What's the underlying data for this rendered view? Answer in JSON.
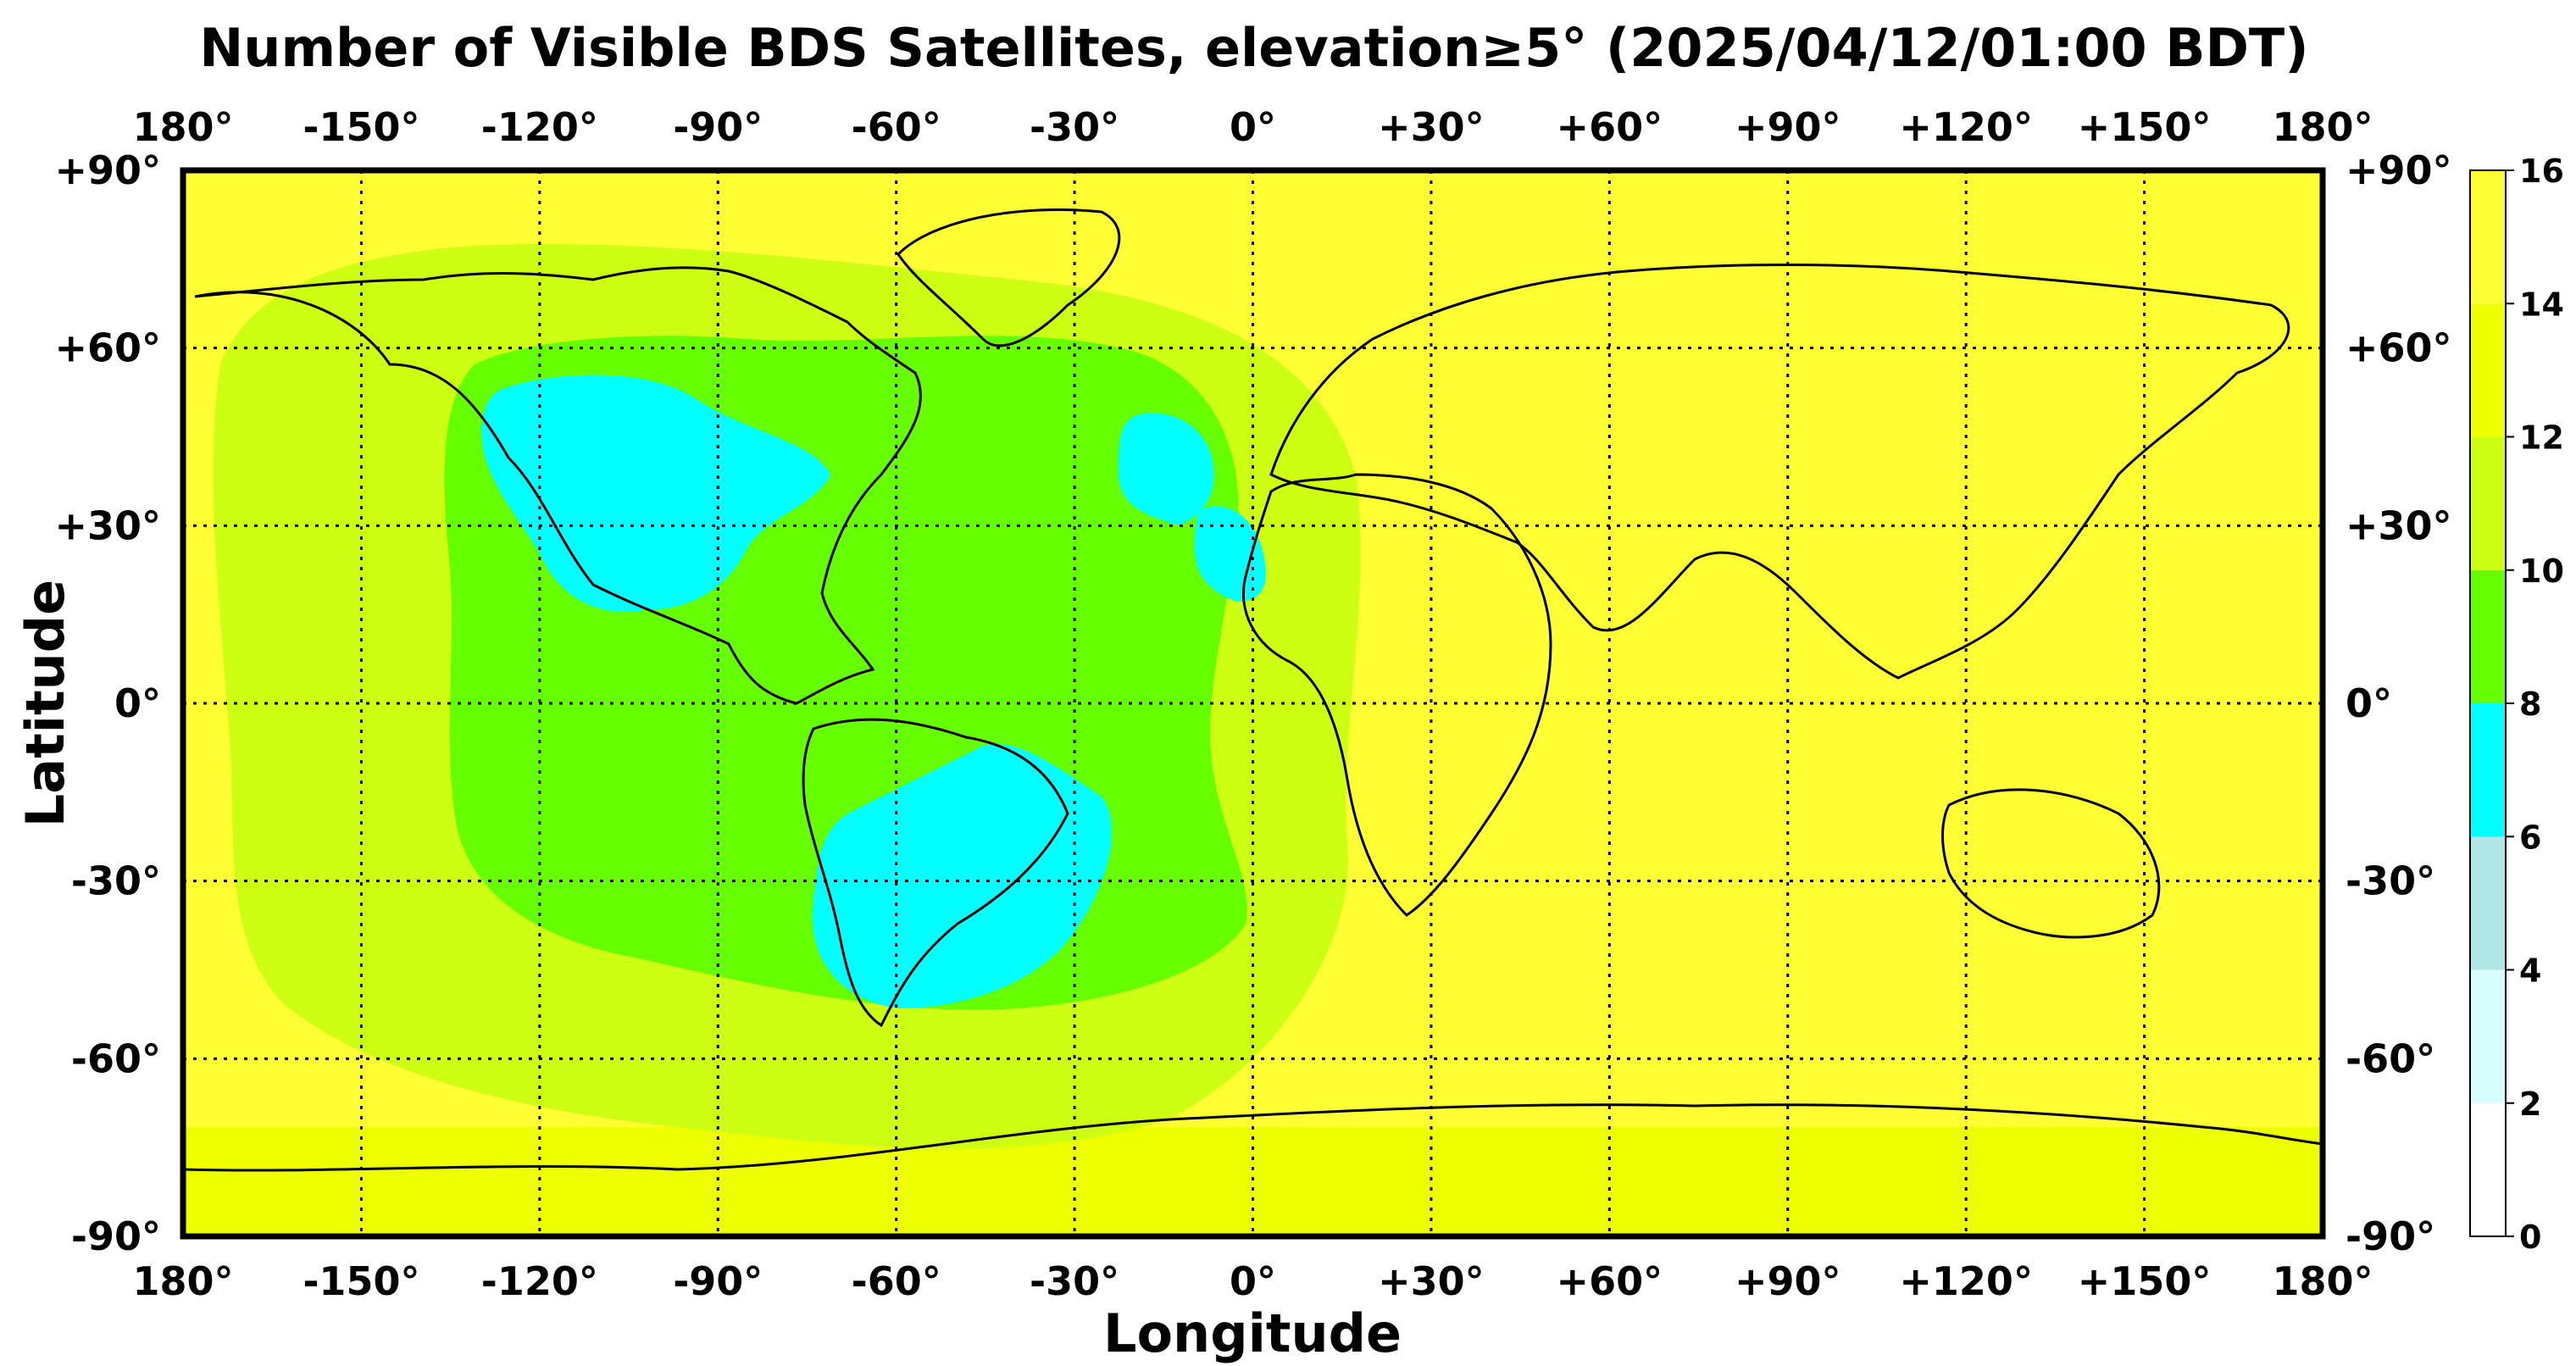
{
  "title": "Number of Visible BDS Satellites, elevation≥5° (2025/04/12/01:00 BDT)",
  "xlabel": "Longitude",
  "ylabel": "Latitude",
  "lon_ticks": [
    "180°",
    "-150°",
    "-120°",
    "-90°",
    "-60°",
    "-30°",
    "0°",
    "+30°",
    "+60°",
    "+90°",
    "+120°",
    "+150°",
    "180°"
  ],
  "lat_ticks": [
    "+90°",
    "+60°",
    "+30°",
    "0°",
    "-30°",
    "-60°",
    "-90°"
  ],
  "colorbar": {
    "labels": [
      "0",
      "2",
      "4",
      "6",
      "8",
      "10",
      "12",
      "14",
      "16"
    ],
    "colors": [
      "#ffffff",
      "#d8ffff",
      "#b0e6e6",
      "#00ffff",
      "#66ff00",
      "#ccff11",
      "#eeff00",
      "#ffff33"
    ]
  },
  "chart_data": {
    "type": "heatmap",
    "title": "Number of Visible BDS Satellites, elevation≥5° (2025/04/12/01:00 BDT)",
    "xlabel": "Longitude",
    "ylabel": "Latitude",
    "xlim": [
      -180,
      180
    ],
    "ylim": [
      -90,
      90
    ],
    "value_range": [
      0,
      16
    ],
    "grid": true,
    "regions": [
      {
        "value": 14,
        "note": "14-16 satellites",
        "lon": [
          -180,
          180
        ],
        "lat": [
          -90,
          90
        ]
      },
      {
        "value": 12,
        "lon": [
          -150,
          30
        ],
        "lat": [
          -70,
          70
        ]
      },
      {
        "value": 10,
        "lon": [
          -135,
          10
        ],
        "lat": [
          -45,
          65
        ]
      },
      {
        "value": 8,
        "lon": [
          -130,
          -90
        ],
        "lat": [
          15,
          55
        ]
      },
      {
        "value": 8,
        "lon": [
          -80,
          -30
        ],
        "lat": [
          -55,
          -10
        ]
      },
      {
        "value": 8,
        "lon": [
          -20,
          5
        ],
        "lat": [
          20,
          50
        ]
      }
    ]
  }
}
